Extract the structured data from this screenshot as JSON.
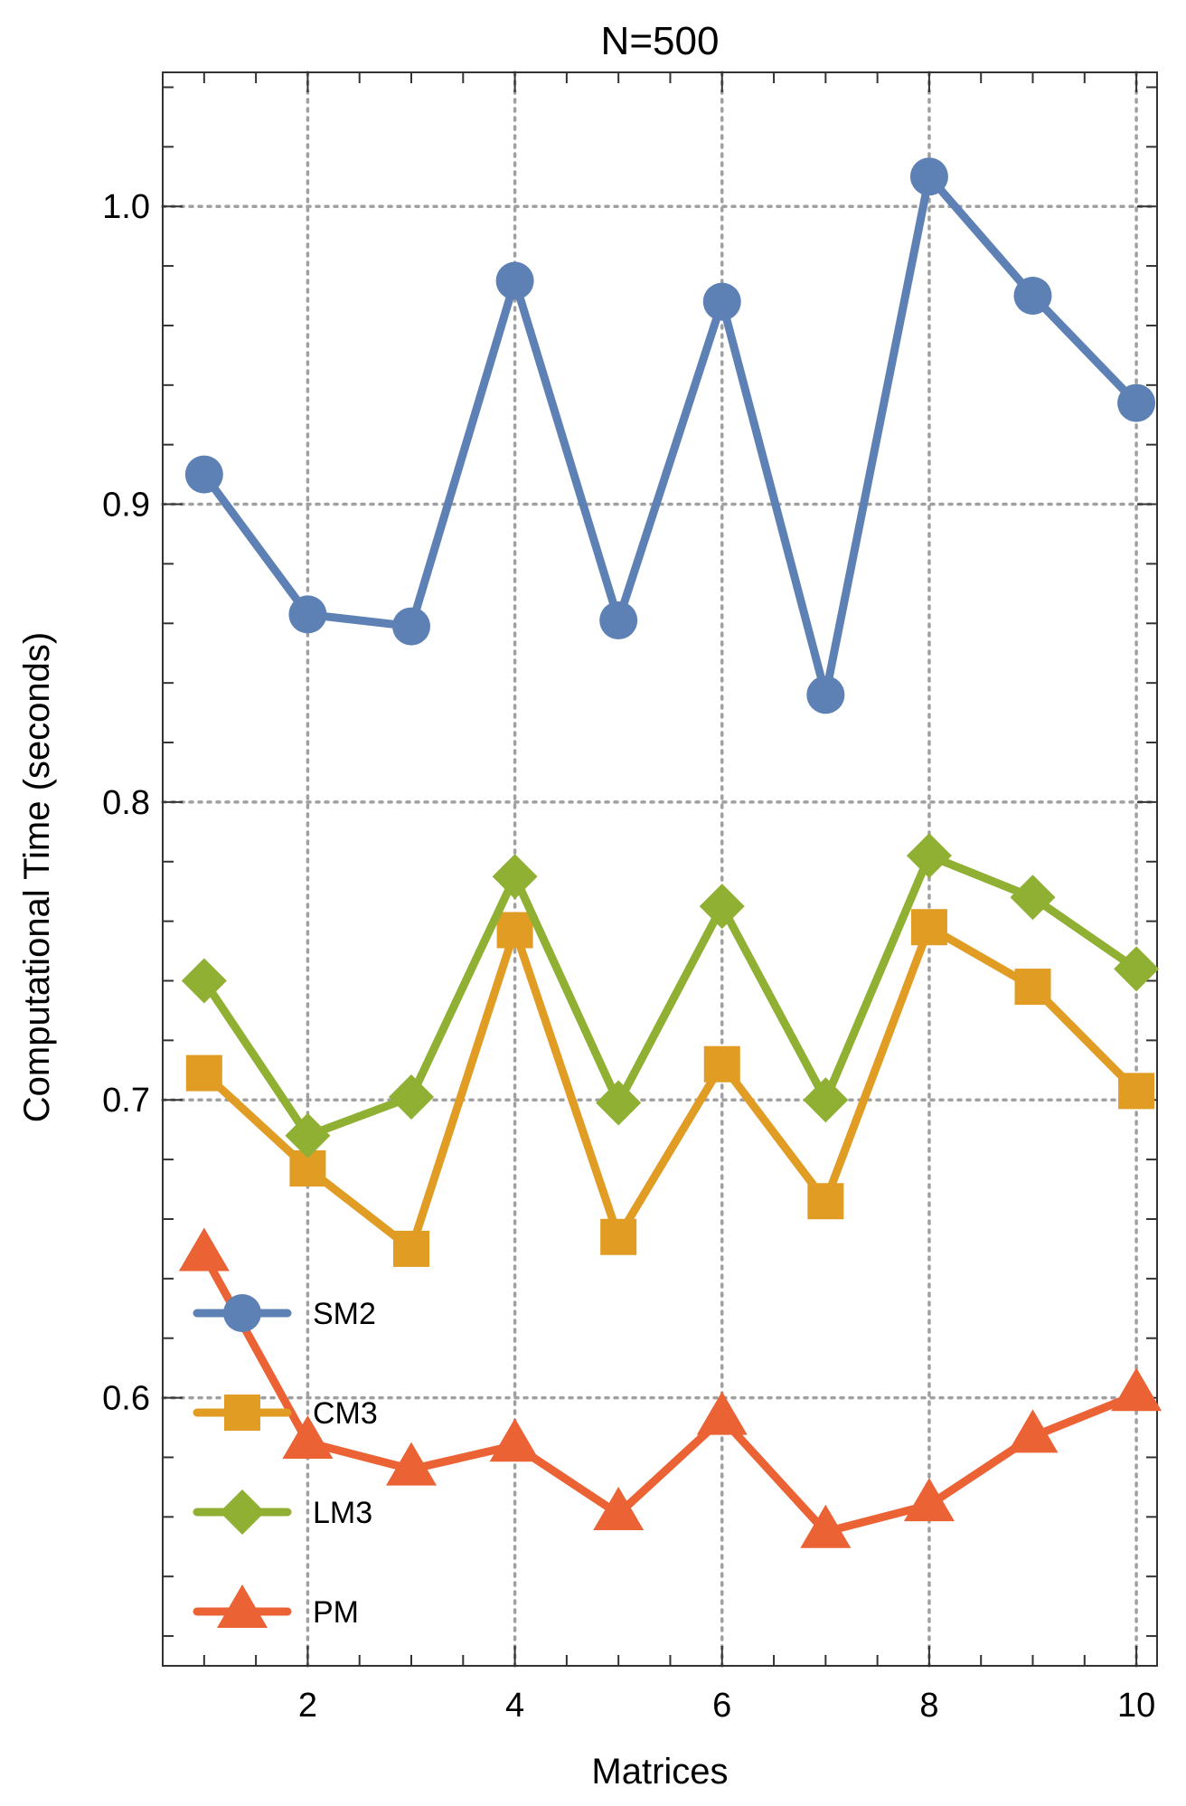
{
  "chart_data": {
    "type": "line",
    "title": "N=500",
    "xlabel": "Matrices",
    "ylabel": "Computational Time (seconds)",
    "xlim": [
      0.6,
      10.2
    ],
    "ylim": [
      0.51,
      1.045
    ],
    "xticks": [
      2,
      4,
      6,
      8,
      10
    ],
    "yticks": [
      0.6,
      0.7,
      0.8,
      0.9,
      1.0
    ],
    "xtick_labels": [
      "2",
      "4",
      "6",
      "8",
      "10"
    ],
    "ytick_labels": [
      "0.6",
      "0.7",
      "0.8",
      "0.9",
      "1.0"
    ],
    "grid": true,
    "legend_position": "bottom-left",
    "x": [
      1,
      2,
      3,
      4,
      5,
      6,
      7,
      8,
      9,
      10
    ],
    "series": [
      {
        "name": "SM2",
        "color": "#5E81B5",
        "marker": "circle",
        "values": [
          0.91,
          0.863,
          0.859,
          0.975,
          0.861,
          0.968,
          0.836,
          1.01,
          0.97,
          0.934
        ]
      },
      {
        "name": "CM3",
        "color": "#E19C24",
        "marker": "square",
        "values": [
          0.709,
          0.677,
          0.65,
          0.757,
          0.654,
          0.712,
          0.666,
          0.758,
          0.738,
          0.703
        ]
      },
      {
        "name": "LM3",
        "color": "#8FB032",
        "marker": "diamond",
        "values": [
          0.74,
          0.688,
          0.701,
          0.775,
          0.699,
          0.765,
          0.7,
          0.782,
          0.768,
          0.744
        ]
      },
      {
        "name": "PM",
        "color": "#EB6235",
        "marker": "triangle",
        "values": [
          0.648,
          0.585,
          0.576,
          0.584,
          0.561,
          0.593,
          0.555,
          0.564,
          0.587,
          0.601
        ]
      }
    ]
  }
}
